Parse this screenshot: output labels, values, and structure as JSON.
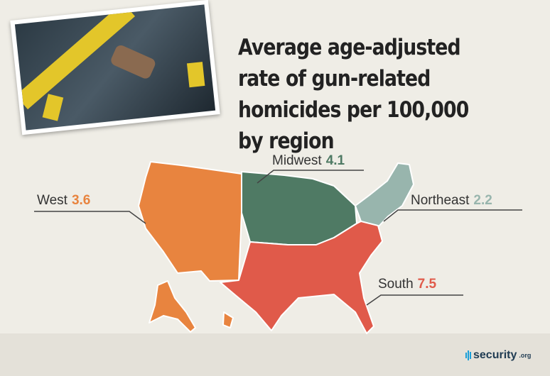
{
  "title": "Average age-adjusted rate of gun-related homicides per 100,000 by region",
  "chart_data": {
    "type": "map",
    "title": "Average age-adjusted rate of gun-related homicides per 100,000 by region",
    "regions": [
      {
        "name": "West",
        "value": "3.6",
        "color": "#e8843f"
      },
      {
        "name": "Midwest",
        "value": "4.1",
        "color": "#4f7a64"
      },
      {
        "name": "Northeast",
        "value": "2.2",
        "color": "#98b5ad"
      },
      {
        "name": "South",
        "value": "7.5",
        "color": "#e05a4a"
      }
    ]
  },
  "logo": {
    "text": "security",
    "suffix": ".org"
  }
}
